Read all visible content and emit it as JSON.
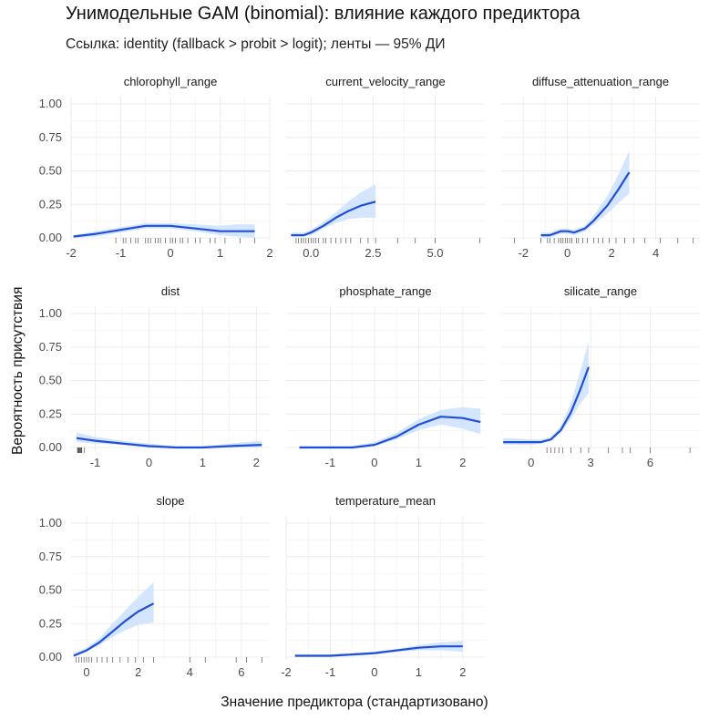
{
  "figure": {
    "title": "Унимодельные GAM (binomial): влияние каждого предиктора",
    "subtitle": "Ссылка: identity (fallback > probit > logit); ленты — 95% ДИ",
    "xlabel": "Значение предиктора (стандартизовано)",
    "ylabel": "Вероятность присутствия"
  },
  "colors": {
    "line": "#1f4fd8",
    "ribbon": "#cfe2ff",
    "grid": "#ececec",
    "rug": "#555555",
    "axis_text": "#4d4d4d"
  },
  "chart_data": [
    {
      "type": "line",
      "title": "chlorophyll_range",
      "xlim": [
        -2,
        2
      ],
      "xticks": [
        -2,
        -1,
        0,
        1,
        2
      ],
      "xtick_labels": [
        "-2",
        "-1",
        "0",
        "1",
        "2"
      ],
      "ylim": [
        0,
        1
      ],
      "yticks": [
        0,
        0.25,
        0.5,
        0.75,
        1
      ],
      "ytick_labels": [
        "0.00",
        "0.25",
        "0.50",
        "0.75",
        "1.00"
      ],
      "grid": true,
      "series": [
        {
          "x": [
            -1.95,
            -1.5,
            -1.0,
            -0.5,
            0.0,
            0.5,
            1.0,
            1.3,
            1.7
          ],
          "y": [
            0.01,
            0.03,
            0.06,
            0.09,
            0.09,
            0.07,
            0.05,
            0.05,
            0.05
          ],
          "lower": [
            0.0,
            0.01,
            0.04,
            0.07,
            0.07,
            0.05,
            0.02,
            0.01,
            0.0
          ],
          "upper": [
            0.02,
            0.05,
            0.08,
            0.11,
            0.11,
            0.1,
            0.09,
            0.1,
            0.1
          ]
        }
      ],
      "rug": [
        -1.1,
        -0.95,
        -0.9,
        -0.8,
        -0.7,
        -0.65,
        -0.5,
        -0.45,
        -0.4,
        -0.3,
        -0.25,
        -0.2,
        -0.1,
        0.0,
        0.05,
        0.1,
        0.2,
        0.25,
        0.35,
        0.5,
        0.6,
        0.8,
        0.9,
        1.1,
        1.4,
        1.7
      ]
    },
    {
      "type": "line",
      "title": "current_velocity_range",
      "xlim": [
        -1.0,
        7.0
      ],
      "xticks": [
        0,
        2.5,
        5
      ],
      "xtick_labels": [
        "0.0",
        "2.5",
        "5.0"
      ],
      "ylim": [
        0,
        1
      ],
      "yticks": [
        0,
        0.25,
        0.5,
        0.75,
        1
      ],
      "ytick_labels": [
        "0.00",
        "0.25",
        "0.50",
        "0.75",
        "1.00"
      ],
      "grid": true,
      "series": [
        {
          "x": [
            -0.8,
            -0.3,
            0.0,
            0.5,
            1.0,
            1.5,
            2.0,
            2.6
          ],
          "y": [
            0.02,
            0.02,
            0.04,
            0.09,
            0.15,
            0.2,
            0.24,
            0.27
          ],
          "lower": [
            0.01,
            0.01,
            0.02,
            0.07,
            0.11,
            0.14,
            0.15,
            0.15
          ],
          "upper": [
            0.04,
            0.04,
            0.06,
            0.12,
            0.19,
            0.27,
            0.34,
            0.4
          ]
        }
      ],
      "rug": [
        -0.6,
        -0.5,
        -0.4,
        -0.3,
        -0.2,
        -0.1,
        0.0,
        0.1,
        0.2,
        0.3,
        0.5,
        0.6,
        0.8,
        1.0,
        1.2,
        1.4,
        1.6,
        2.0,
        2.3,
        2.6,
        3.5,
        4.2,
        5.0,
        6.8
      ]
    },
    {
      "type": "line",
      "title": "diffuse_attenuation_range",
      "xlim": [
        -3.0,
        6.0
      ],
      "xticks": [
        -2,
        0,
        2,
        4
      ],
      "xtick_labels": [
        "-2",
        "0",
        "2",
        "4"
      ],
      "ylim": [
        0,
        1
      ],
      "yticks": [
        0,
        0.25,
        0.5,
        0.75,
        1
      ],
      "ytick_labels": [
        "0.00",
        "0.25",
        "0.50",
        "0.75",
        "1.00"
      ],
      "grid": true,
      "series": [
        {
          "x": [
            -1.2,
            -0.8,
            -0.3,
            0.0,
            0.3,
            0.8,
            1.2,
            1.8,
            2.3,
            2.8
          ],
          "y": [
            0.02,
            0.02,
            0.05,
            0.05,
            0.04,
            0.07,
            0.13,
            0.24,
            0.36,
            0.49
          ],
          "lower": [
            0.0,
            0.0,
            0.03,
            0.03,
            0.02,
            0.05,
            0.1,
            0.18,
            0.26,
            0.33
          ],
          "upper": [
            0.04,
            0.04,
            0.07,
            0.07,
            0.06,
            0.09,
            0.17,
            0.31,
            0.47,
            0.65
          ]
        }
      ],
      "rug": [
        -2.4,
        -1.2,
        -0.9,
        -0.8,
        -0.6,
        -0.4,
        -0.3,
        -0.2,
        -0.1,
        0.0,
        0.1,
        0.2,
        0.4,
        0.5,
        0.7,
        0.9,
        1.2,
        1.4,
        1.6,
        1.9,
        2.2,
        2.6,
        3.0,
        3.5,
        4.2,
        5.0,
        5.7
      ]
    },
    {
      "type": "line",
      "title": "dist",
      "xlim": [
        -1.45,
        2.25
      ],
      "xticks": [
        -1,
        0,
        1,
        2
      ],
      "xtick_labels": [
        "-1",
        "0",
        "1",
        "2"
      ],
      "ylim": [
        0,
        1
      ],
      "yticks": [
        0,
        0.25,
        0.5,
        0.75,
        1
      ],
      "ytick_labels": [
        "0.00",
        "0.25",
        "0.50",
        "0.75",
        "1.00"
      ],
      "grid": true,
      "series": [
        {
          "x": [
            -1.35,
            -1.0,
            -0.5,
            0.0,
            0.5,
            1.0,
            1.5,
            2.1
          ],
          "y": [
            0.07,
            0.05,
            0.03,
            0.01,
            0.0,
            0.0,
            0.01,
            0.02
          ],
          "lower": [
            0.04,
            0.03,
            0.02,
            0.0,
            0.0,
            0.0,
            0.0,
            0.0
          ],
          "upper": [
            0.11,
            0.08,
            0.05,
            0.03,
            0.01,
            0.01,
            0.03,
            0.05
          ]
        }
      ],
      "rug": [
        -1.33,
        -1.32,
        -1.31,
        -1.3,
        -1.29,
        -1.28,
        -1.27,
        -1.26,
        -1.25,
        -1.2
      ]
    },
    {
      "type": "line",
      "title": "phosphate_range",
      "xlim": [
        -2.0,
        2.5
      ],
      "xticks": [
        -1,
        0,
        1,
        2
      ],
      "xtick_labels": [
        "-1",
        "0",
        "1",
        "2"
      ],
      "ylim": [
        0,
        1
      ],
      "yticks": [
        0,
        0.25,
        0.5,
        0.75,
        1
      ],
      "ytick_labels": [
        "0.00",
        "0.25",
        "0.50",
        "0.75",
        "1.00"
      ],
      "grid": true,
      "series": [
        {
          "x": [
            -1.7,
            -1.0,
            -0.5,
            0.0,
            0.5,
            1.0,
            1.5,
            2.0,
            2.4
          ],
          "y": [
            0.0,
            0.0,
            0.0,
            0.02,
            0.08,
            0.17,
            0.23,
            0.22,
            0.19
          ],
          "lower": [
            0.0,
            0.0,
            0.0,
            0.01,
            0.06,
            0.13,
            0.17,
            0.14,
            0.1
          ],
          "upper": [
            0.01,
            0.01,
            0.01,
            0.04,
            0.11,
            0.21,
            0.28,
            0.3,
            0.29
          ]
        }
      ],
      "rug": []
    },
    {
      "type": "line",
      "title": "silicate_range",
      "xlim": [
        -1.5,
        8.5
      ],
      "xticks": [
        0,
        3,
        6
      ],
      "xtick_labels": [
        "0",
        "3",
        "6"
      ],
      "ylim": [
        0,
        1
      ],
      "yticks": [
        0,
        0.25,
        0.5,
        0.75,
        1
      ],
      "ytick_labels": [
        "0.00",
        "0.25",
        "0.50",
        "0.75",
        "1.00"
      ],
      "grid": true,
      "series": [
        {
          "x": [
            -1.4,
            -1.0,
            0.0,
            0.5,
            1.0,
            1.5,
            2.0,
            2.5,
            2.9
          ],
          "y": [
            0.04,
            0.04,
            0.04,
            0.04,
            0.06,
            0.13,
            0.26,
            0.44,
            0.6
          ],
          "lower": [
            0.02,
            0.02,
            0.02,
            0.03,
            0.05,
            0.11,
            0.21,
            0.33,
            0.41
          ],
          "upper": [
            0.07,
            0.07,
            0.06,
            0.06,
            0.08,
            0.16,
            0.33,
            0.58,
            0.79
          ]
        }
      ],
      "rug": [
        0.8,
        1.0,
        1.2,
        1.4,
        1.6,
        2.0,
        2.5,
        2.9,
        3.9,
        4.6,
        5.0,
        6.0,
        8.0
      ]
    },
    {
      "type": "line",
      "title": "slope",
      "xlim": [
        -0.6,
        7.1
      ],
      "xticks": [
        0,
        2,
        4,
        6
      ],
      "xtick_labels": [
        "0",
        "2",
        "4",
        "6"
      ],
      "ylim": [
        0,
        1
      ],
      "yticks": [
        0,
        0.25,
        0.5,
        0.75,
        1
      ],
      "ytick_labels": [
        "0.00",
        "0.25",
        "0.50",
        "0.75",
        "1.00"
      ],
      "grid": true,
      "series": [
        {
          "x": [
            -0.5,
            0.0,
            0.5,
            1.0,
            1.5,
            2.0,
            2.6
          ],
          "y": [
            0.01,
            0.05,
            0.11,
            0.19,
            0.27,
            0.34,
            0.4
          ],
          "lower": [
            0.0,
            0.04,
            0.09,
            0.15,
            0.2,
            0.24,
            0.26
          ],
          "upper": [
            0.03,
            0.07,
            0.14,
            0.25,
            0.35,
            0.45,
            0.56
          ]
        }
      ],
      "rug": [
        -0.4,
        -0.3,
        -0.2,
        -0.1,
        0.0,
        0.1,
        0.2,
        0.4,
        0.6,
        0.8,
        1.0,
        1.3,
        1.6,
        1.9,
        2.2,
        2.6,
        4.0,
        4.6,
        5.8,
        6.2,
        6.8
      ]
    },
    {
      "type": "line",
      "title": "temperature_mean",
      "xlim": [
        -2.0,
        2.5
      ],
      "xticks": [
        -2,
        -1,
        0,
        1,
        2
      ],
      "xtick_labels": [
        "-2",
        "-1",
        "0",
        "1",
        "2"
      ],
      "ylim": [
        0,
        1
      ],
      "yticks": [
        0,
        0.25,
        0.5,
        0.75,
        1
      ],
      "ytick_labels": [
        "0.00",
        "0.25",
        "0.50",
        "0.75",
        "1.00"
      ],
      "grid": true,
      "series": [
        {
          "x": [
            -1.8,
            -1.0,
            -0.5,
            0.0,
            0.5,
            1.0,
            1.5,
            2.0
          ],
          "y": [
            0.01,
            0.01,
            0.02,
            0.03,
            0.05,
            0.07,
            0.08,
            0.08
          ],
          "lower": [
            0.0,
            0.0,
            0.01,
            0.02,
            0.04,
            0.05,
            0.05,
            0.04
          ],
          "upper": [
            0.02,
            0.02,
            0.03,
            0.04,
            0.06,
            0.09,
            0.11,
            0.12
          ]
        }
      ],
      "rug": []
    }
  ]
}
